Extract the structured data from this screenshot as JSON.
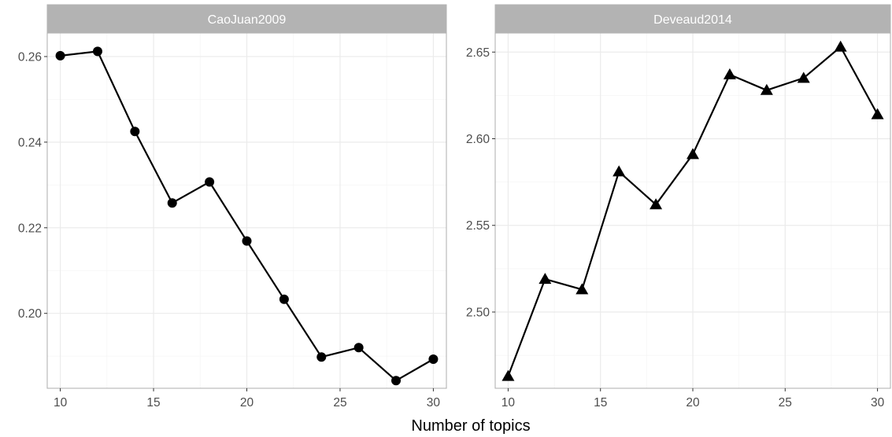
{
  "chart_data": [
    {
      "type": "line",
      "title": "CaoJuan2009",
      "marker": "circle",
      "x": [
        10,
        12,
        14,
        16,
        18,
        20,
        22,
        24,
        26,
        28,
        30
      ],
      "series": [
        {
          "values": [
            0.2602,
            0.2612,
            0.2425,
            0.2258,
            0.2307,
            0.2169,
            0.2033,
            0.1898,
            0.192,
            0.1843,
            0.1893
          ]
        }
      ],
      "xlim": [
        9.3,
        30.7
      ],
      "ylim": [
        0.1825,
        0.2655
      ],
      "xticks": [
        10,
        15,
        20,
        25,
        30
      ],
      "yticks": [
        0.2,
        0.22,
        0.24,
        0.26
      ],
      "xtick_labels": [
        "10",
        "15",
        "20",
        "25",
        "30"
      ],
      "ytick_labels": [
        "0.20",
        "0.22",
        "0.24",
        "0.26"
      ],
      "grid": true
    },
    {
      "type": "line",
      "title": "Deveaud2014",
      "marker": "triangle",
      "x": [
        10,
        12,
        14,
        16,
        18,
        20,
        22,
        24,
        26,
        28,
        30
      ],
      "series": [
        {
          "values": [
            2.463,
            2.519,
            2.513,
            2.581,
            2.562,
            2.591,
            2.637,
            2.628,
            2.635,
            2.653,
            2.614
          ]
        }
      ],
      "xlim": [
        9.3,
        30.7
      ],
      "ylim": [
        2.456,
        2.661
      ],
      "xticks": [
        10,
        15,
        20,
        25,
        30
      ],
      "yticks": [
        2.5,
        2.55,
        2.6,
        2.65
      ],
      "xtick_labels": [
        "10",
        "15",
        "20",
        "25",
        "30"
      ],
      "ytick_labels": [
        "2.50",
        "2.55",
        "2.60",
        "2.65"
      ],
      "grid": true
    }
  ],
  "xlabel": "Number of topics",
  "colors": {
    "strip_bg": "#b3b3b3",
    "strip_text": "#ffffff",
    "grid_major": "#ebebeb",
    "grid_minor": "#f5f5f5",
    "panel_border": "#b3b3b3",
    "line": "#000000",
    "tick_text": "#4d4d4d"
  }
}
